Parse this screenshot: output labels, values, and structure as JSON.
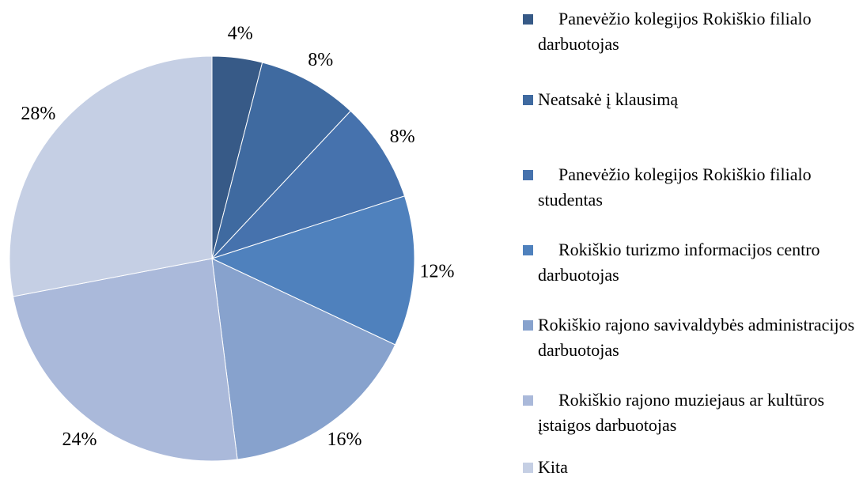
{
  "chart_data": {
    "type": "pie",
    "categories": [
      "Panevėžio kolegijos Rokiškio filialo darbuotojas",
      "Neatsakė į klausimą",
      "Panevėžio kolegijos Rokiškio filialo studentas",
      "Rokiškio turizmo informacijos centro darbuotojas",
      "Rokiškio rajono savivaldybės administracijos darbuotojas",
      "Rokiškio rajono muziejaus ar kultūros įstaigos darbuotojas",
      "Kita"
    ],
    "values": [
      4,
      8,
      8,
      12,
      16,
      24,
      28
    ],
    "value_labels": [
      "4%",
      "8%",
      "8%",
      "12%",
      "16%",
      "24%",
      "28%"
    ],
    "colors": [
      "#375a87",
      "#3f6aa0",
      "#4672ad",
      "#4f81bd",
      "#87a2cd",
      "#aab9da",
      "#c5cfe4"
    ]
  }
}
